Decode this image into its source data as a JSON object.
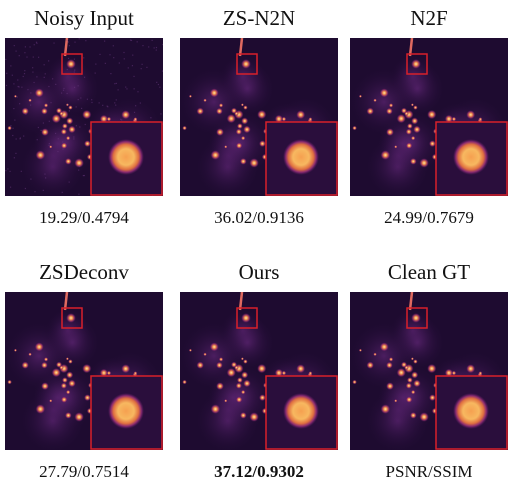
{
  "panels": [
    {
      "title": "Noisy Input",
      "metric": "19.29/0.4794"
    },
    {
      "title": "ZS-N2N",
      "metric": "36.02/0.9136"
    },
    {
      "title": "N2F",
      "metric": "24.99/0.7679"
    },
    {
      "title": "ZSDeconv",
      "metric": "27.79/0.7514"
    },
    {
      "title": "Ours",
      "metric": "37.12/0.9302"
    },
    {
      "title": "Clean GT",
      "metric": "PSNR/SSIM"
    }
  ]
}
